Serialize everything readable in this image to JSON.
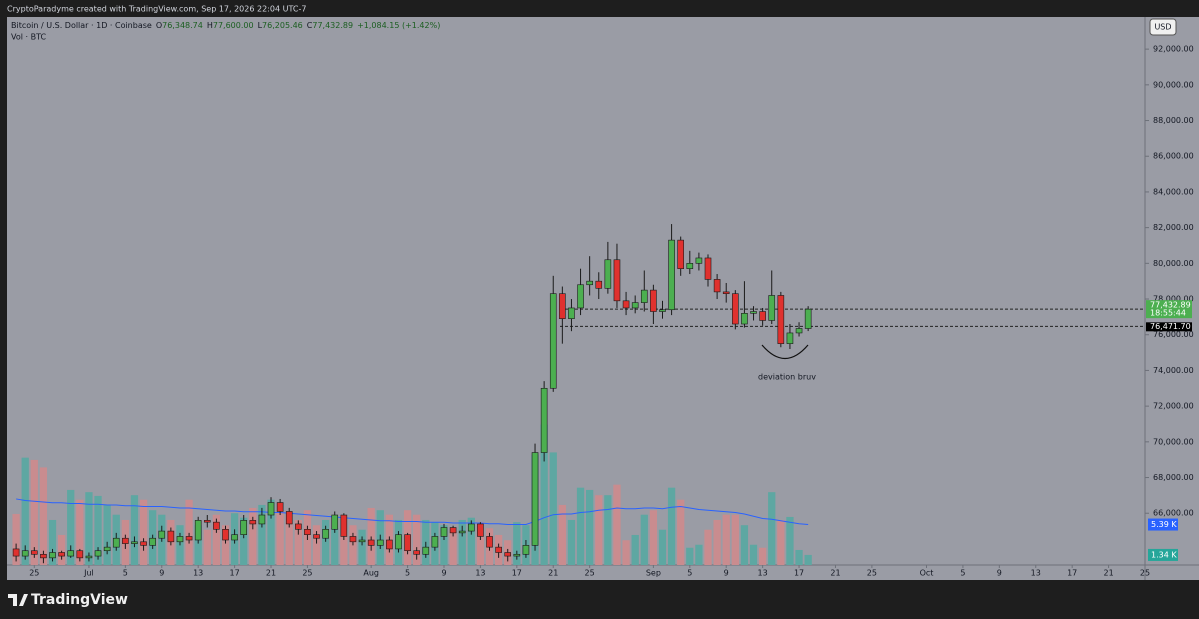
{
  "chart_data": {
    "type": "candlestick",
    "header": "CryptoParadyme created with TradingView.com, Sep 17, 2026 22:04 UTC-7",
    "symbol": "Bitcoin / U.S. Dollar · 1D · Coinbase",
    "ohlc_legend": [
      {
        "key": "O",
        "text": "76,348.74"
      },
      {
        "key": "H",
        "text": "77,600.00"
      },
      {
        "key": "L",
        "text": "76,205.46"
      },
      {
        "key": "C",
        "text": "77,432.89"
      }
    ],
    "change": "+1,084.15 (+1.42%)",
    "vol_legend": "Vol · BTC",
    "currency": "USD",
    "annotation": "deviation bruv",
    "countdown": "18:55:44",
    "brand": "TradingView",
    "up_color": "#4caf50",
    "down_color": "#e0312e",
    "x": [
      "Jun 23",
      "Jun 24",
      "Jun 25",
      "Jun 26",
      "Jun 27",
      "Jun 28",
      "Jun 29",
      "Jun 30",
      "Jul 1",
      "Jul 2",
      "Jul 3",
      "Jul 4",
      "Jul 5",
      "Jul 6",
      "Jul 7",
      "Jul 8",
      "Jul 9",
      "Jul 10",
      "Jul 11",
      "Jul 12",
      "Jul 13",
      "Jul 14",
      "Jul 15",
      "Jul 16",
      "Jul 17",
      "Jul 18",
      "Jul 19",
      "Jul 20",
      "Jul 21",
      "Jul 22",
      "Jul 23",
      "Jul 24",
      "Jul 25",
      "Jul 26",
      "Jul 27",
      "Jul 28",
      "Jul 29",
      "Jul 30",
      "Jul 31",
      "Aug 1",
      "Aug 2",
      "Aug 3",
      "Aug 4",
      "Aug 5",
      "Aug 6",
      "Aug 7",
      "Aug 8",
      "Aug 9",
      "Aug 10",
      "Aug 11",
      "Aug 12",
      "Aug 13",
      "Aug 14",
      "Aug 15",
      "Aug 16",
      "Aug 17",
      "Aug 18",
      "Aug 19",
      "Aug 20",
      "Aug 21",
      "Aug 22",
      "Aug 23",
      "Aug 24",
      "Aug 25",
      "Aug 26",
      "Aug 27",
      "Aug 28",
      "Aug 29",
      "Aug 30",
      "Aug 31",
      "Sep 1",
      "Sep 2",
      "Sep 3",
      "Sep 4",
      "Sep 5",
      "Sep 6",
      "Sep 7",
      "Sep 8",
      "Sep 9",
      "Sep 10",
      "Sep 11",
      "Sep 12",
      "Sep 13",
      "Sep 14",
      "Sep 15",
      "Sep 16",
      "Sep 17",
      "Sep 18"
    ],
    "open": [
      64000,
      63600,
      63900,
      63700,
      63500,
      63800,
      63600,
      63900,
      63500,
      63600,
      63900,
      64100,
      64600,
      64300,
      64400,
      64200,
      64600,
      65000,
      64400,
      64700,
      64500,
      65600,
      65500,
      65100,
      64500,
      64800,
      65600,
      65400,
      65900,
      66600,
      66100,
      65400,
      65100,
      64800,
      64600,
      65100,
      65900,
      64700,
      64400,
      64500,
      64200,
      64500,
      64000,
      64800,
      63900,
      63700,
      64100,
      64700,
      65200,
      64900,
      65000,
      65400,
      64700,
      64100,
      63800,
      63600,
      63700,
      64200,
      69400,
      73000,
      78300,
      76900,
      77500,
      78800,
      79000,
      78600,
      80200,
      77900,
      77500,
      77800,
      78500,
      77300,
      77400,
      81300,
      79700,
      80000,
      80300,
      79100,
      78400,
      78300,
      76600,
      77200,
      77300,
      76800,
      78200,
      75500,
      76100,
      76348.74
    ],
    "high": [
      64300,
      64200,
      64100,
      63900,
      64000,
      63900,
      64200,
      64000,
      63800,
      64100,
      64400,
      64900,
      64800,
      64700,
      64600,
      64800,
      65300,
      65200,
      64900,
      64900,
      65800,
      65900,
      65700,
      65300,
      65100,
      65900,
      65800,
      66300,
      66900,
      66800,
      66300,
      65600,
      65300,
      65000,
      65300,
      66100,
      66000,
      64900,
      64700,
      64700,
      64800,
      64700,
      65000,
      64900,
      64100,
      64400,
      64900,
      65400,
      65300,
      65300,
      65600,
      65500,
      64900,
      64300,
      64000,
      63900,
      64500,
      69900,
      73400,
      79300,
      78700,
      78000,
      79700,
      80400,
      79500,
      81200,
      81100,
      78400,
      78200,
      79600,
      78800,
      77900,
      82200,
      81500,
      80700,
      80600,
      80500,
      79400,
      78900,
      78500,
      79000,
      77600,
      77500,
      79600,
      78400,
      76600,
      76700,
      77600
    ],
    "low": [
      63300,
      63400,
      63500,
      63200,
      63300,
      63400,
      63500,
      63300,
      63300,
      63400,
      63700,
      63900,
      64000,
      64100,
      63900,
      64000,
      64400,
      64200,
      64200,
      64300,
      64300,
      65200,
      64900,
      64300,
      64300,
      64600,
      65100,
      65200,
      65700,
      65900,
      65200,
      64800,
      64500,
      64300,
      64400,
      64900,
      64500,
      64200,
      64200,
      63900,
      64000,
      63800,
      63800,
      63700,
      63400,
      63500,
      63900,
      64500,
      64700,
      64700,
      64800,
      64500,
      63900,
      63500,
      63300,
      63400,
      63500,
      63900,
      68900,
      72800,
      75500,
      76200,
      77100,
      78200,
      78000,
      78300,
      77500,
      77100,
      77200,
      77300,
      76600,
      76900,
      77100,
      79300,
      79400,
      79600,
      78700,
      78000,
      77800,
      76300,
      76400,
      76800,
      76500,
      76600,
      75300,
      75200,
      75900,
      76205.46
    ],
    "close": [
      63600,
      63900,
      63700,
      63500,
      63800,
      63600,
      63900,
      63500,
      63600,
      63900,
      64100,
      64600,
      64300,
      64400,
      64200,
      64600,
      65000,
      64400,
      64700,
      64500,
      65600,
      65500,
      65100,
      64500,
      64800,
      65600,
      65400,
      65900,
      66600,
      66100,
      65400,
      65100,
      64800,
      64600,
      65100,
      65900,
      64700,
      64400,
      64500,
      64200,
      64500,
      64000,
      64800,
      63900,
      63700,
      64100,
      64700,
      65200,
      64900,
      65000,
      65400,
      64700,
      64100,
      63800,
      63600,
      63700,
      64200,
      69400,
      73000,
      78300,
      76900,
      77500,
      78800,
      79000,
      78600,
      80200,
      77900,
      77500,
      77800,
      78500,
      77300,
      77400,
      81300,
      79700,
      80000,
      80300,
      79100,
      78400,
      78300,
      76600,
      77200,
      77300,
      76800,
      78200,
      75500,
      76100,
      76348.74,
      77432.89
    ],
    "volume": {
      "up_color": "#5ea7a2",
      "down_color": "#c98c8f",
      "last_label": "1.34 K",
      "values": [
        6.8,
        14.3,
        14,
        13,
        6,
        4,
        10,
        8.7,
        9.7,
        9.2,
        8,
        6.7,
        6,
        9.3,
        8.7,
        7.3,
        6.7,
        6,
        5.3,
        8.7,
        5.3,
        4.7,
        6.7,
        5.3,
        6.9,
        6.3,
        7.6,
        8,
        8.7,
        7.3,
        6.7,
        6,
        7.3,
        5.3,
        6,
        4.9,
        4,
        5.3,
        4.7,
        7.6,
        7.3,
        6.7,
        6,
        7.3,
        6.7,
        6,
        5.7,
        5.3,
        4.7,
        6,
        6.3,
        5.7,
        4.9,
        4,
        3.3,
        5.7,
        5.3,
        14.7,
        18.7,
        15,
        8,
        6,
        10.3,
        10,
        9.3,
        9.3,
        10.7,
        3.3,
        4,
        6.7,
        7.3,
        4.7,
        10.3,
        8.7,
        2.3,
        2.7,
        4.7,
        6,
        6.7,
        6.7,
        5.3,
        2.7,
        2.3,
        9.7,
        6,
        6.4,
        2,
        1.34
      ]
    },
    "volume_ma": {
      "color": "#2962ff",
      "last_label": "5.39 K",
      "values": [
        8.8,
        8.6,
        8.5,
        8.4,
        8.3,
        8.3,
        8.2,
        8.2,
        8.1,
        8.1,
        8.0,
        8.0,
        7.9,
        7.9,
        7.8,
        7.8,
        7.8,
        7.7,
        7.6,
        7.6,
        7.5,
        7.4,
        7.3,
        7.2,
        7.2,
        7.1,
        7.1,
        7.1,
        7.0,
        7.0,
        6.9,
        6.8,
        6.7,
        6.6,
        6.5,
        6.4,
        6.3,
        6.2,
        6.1,
        6.0,
        5.9,
        5.9,
        5.8,
        5.8,
        5.8,
        5.7,
        5.7,
        5.7,
        5.6,
        5.6,
        5.6,
        5.6,
        5.5,
        5.5,
        5.4,
        5.4,
        5.4,
        5.8,
        6.3,
        6.7,
        6.8,
        6.8,
        7.0,
        7.1,
        7.3,
        7.4,
        7.6,
        7.5,
        7.5,
        7.6,
        7.6,
        7.5,
        7.7,
        7.8,
        7.6,
        7.4,
        7.3,
        7.2,
        7.1,
        7.0,
        6.8,
        6.5,
        6.2,
        6.1,
        5.9,
        5.7,
        5.5,
        5.39
      ]
    },
    "vlim": [
      0,
      73
    ],
    "price_lines": [
      {
        "value": 77432.89,
        "label": "77,432.89",
        "color": "#4caf50"
      },
      {
        "value": 76471.7,
        "label": "76,471.70",
        "color": "#000000"
      }
    ],
    "ylim": [
      63100,
      93800
    ],
    "yticks": [
      {
        "value": 66000,
        "label": "66,000.00"
      },
      {
        "value": 68000,
        "label": "68,000.00"
      },
      {
        "value": 70000,
        "label": "70,000.00"
      },
      {
        "value": 72000,
        "label": "72,000.00"
      },
      {
        "value": 74000,
        "label": "74,000.00"
      },
      {
        "value": 76000,
        "label": "76,000.00"
      },
      {
        "value": 78000,
        "label": "78,000.00"
      },
      {
        "value": 80000,
        "label": "80,000.00"
      },
      {
        "value": 82000,
        "label": "82,000.00"
      },
      {
        "value": 84000,
        "label": "84,000.00"
      },
      {
        "value": 86000,
        "label": "86,000.00"
      },
      {
        "value": 88000,
        "label": "88,000.00"
      },
      {
        "value": 90000,
        "label": "90,000.00"
      },
      {
        "value": 92000,
        "label": "92,000.00"
      }
    ],
    "xlim": [
      "Jun 22",
      "Oct 25"
    ],
    "xticks": [
      {
        "value": "Jun 25",
        "label": "25"
      },
      {
        "value": "Jul 1",
        "label": "Jul"
      },
      {
        "value": "Jul 5",
        "label": "5"
      },
      {
        "value": "Jul 9",
        "label": "9"
      },
      {
        "value": "Jul 13",
        "label": "13"
      },
      {
        "value": "Jul 17",
        "label": "17"
      },
      {
        "value": "Jul 21",
        "label": "21"
      },
      {
        "value": "Jul 25",
        "label": "25"
      },
      {
        "value": "Aug 1",
        "label": "Aug"
      },
      {
        "value": "Aug 5",
        "label": "5"
      },
      {
        "value": "Aug 9",
        "label": "9"
      },
      {
        "value": "Aug 13",
        "label": "13"
      },
      {
        "value": "Aug 17",
        "label": "17"
      },
      {
        "value": "Aug 21",
        "label": "21"
      },
      {
        "value": "Aug 25",
        "label": "25"
      },
      {
        "value": "Sep 1",
        "label": "Sep"
      },
      {
        "value": "Sep 5",
        "label": "5"
      },
      {
        "value": "Sep 9",
        "label": "9"
      },
      {
        "value": "Sep 13",
        "label": "13"
      },
      {
        "value": "Sep 17",
        "label": "17"
      },
      {
        "value": "Sep 21",
        "label": "21"
      },
      {
        "value": "Sep 25",
        "label": "25"
      },
      {
        "value": "Oct 1",
        "label": "Oct"
      },
      {
        "value": "Oct 5",
        "label": "5"
      },
      {
        "value": "Oct 9",
        "label": "9"
      },
      {
        "value": "Oct 13",
        "label": "13"
      },
      {
        "value": "Oct 17",
        "label": "17"
      },
      {
        "value": "Oct 21",
        "label": "21"
      },
      {
        "value": "Oct 25",
        "label": "25"
      }
    ],
    "grid": false
  }
}
